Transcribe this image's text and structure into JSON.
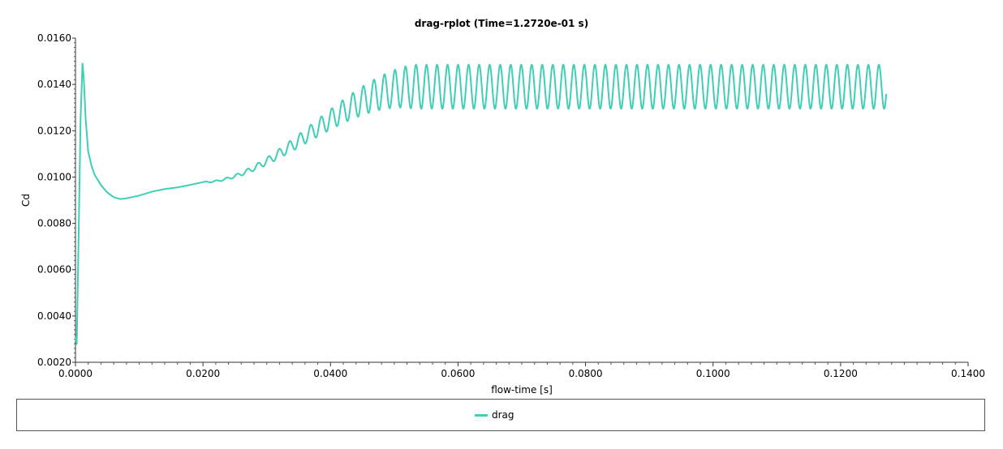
{
  "chart_data": {
    "type": "line",
    "title": "drag-rplot (Time=1.2720e-01 s)",
    "xlabel": "flow-time [s]",
    "ylabel": "Cd",
    "xlim": [
      0,
      0.14
    ],
    "ylim": [
      0.002,
      0.016
    ],
    "x_ticks": [
      "0.0000",
      "0.0200",
      "0.0400",
      "0.0600",
      "0.0800",
      "0.1000",
      "0.1200",
      "0.1400"
    ],
    "x_tick_values": [
      0,
      0.02,
      0.04,
      0.06,
      0.08,
      0.1,
      0.12,
      0.14
    ],
    "y_ticks": [
      "0.0020",
      "0.0040",
      "0.0060",
      "0.0080",
      "0.0100",
      "0.0120",
      "0.0140",
      "0.0160"
    ],
    "y_tick_values": [
      0.002,
      0.004,
      0.006,
      0.008,
      0.01,
      0.012,
      0.014,
      0.016
    ],
    "grid": false,
    "legend_position": "bottom",
    "series": [
      {
        "name": "drag",
        "color": "#3fcfb5",
        "x": [
          0,
          0.0002,
          0.0005,
          0.0008,
          0.0011,
          0.0013,
          0.0016,
          0.002,
          0.0025,
          0.003,
          0.004,
          0.005,
          0.006,
          0.007,
          0.008,
          0.01,
          0.012,
          0.014,
          0.016,
          0.018,
          0.02
        ],
        "y": [
          0.0031,
          0.0028,
          0.0075,
          0.0125,
          0.0149,
          0.0143,
          0.0125,
          0.0111,
          0.0105,
          0.0101,
          0.00965,
          0.00933,
          0.00913,
          0.00905,
          0.00908,
          0.0092,
          0.00937,
          0.00948,
          0.00955,
          0.00966,
          0.00978
        ]
      }
    ],
    "oscillation": {
      "start_x": 0.02,
      "end_x": 0.1272,
      "period": 0.00165,
      "mean_start": 0.00978,
      "mean_end": 0.0139,
      "amp_start": 2e-05,
      "amp_end": 0.00095,
      "settle_x": 0.053,
      "end_value": 0.01355
    }
  },
  "legend": {
    "label": "drag"
  }
}
